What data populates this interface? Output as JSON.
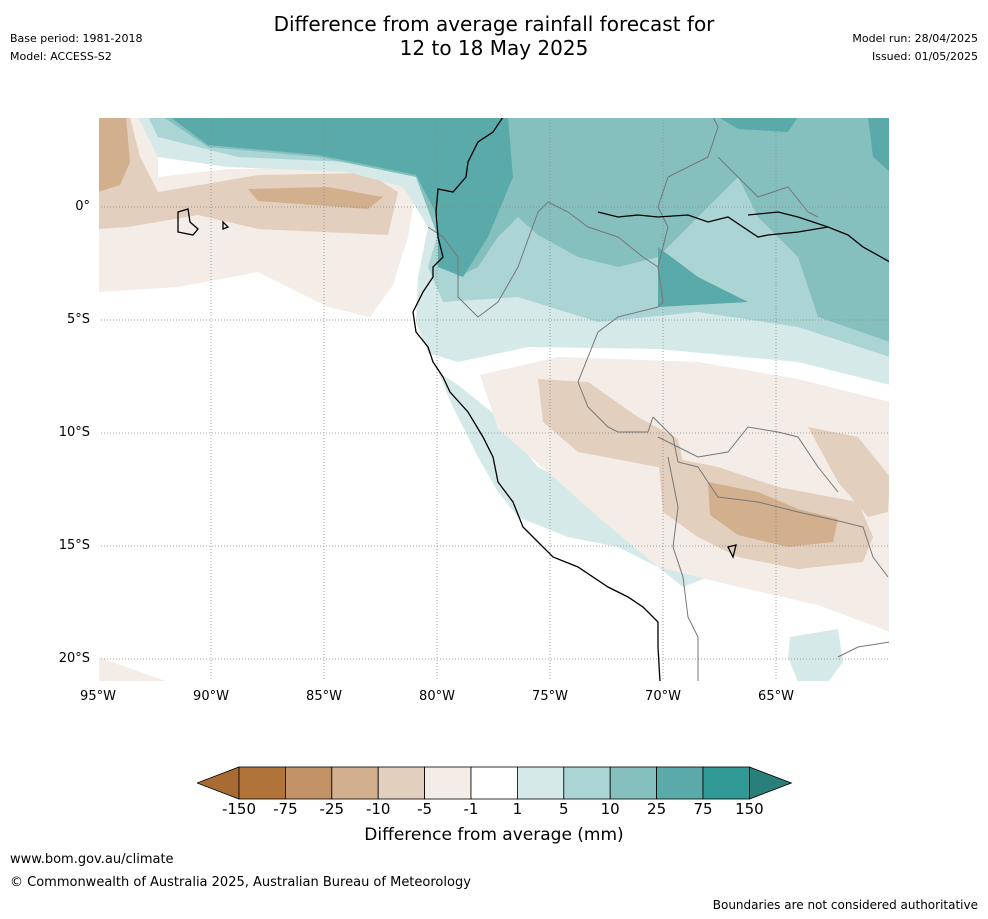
{
  "title": {
    "line1": "Difference from average rainfall forecast for",
    "line2": "12 to 18 May 2025"
  },
  "meta_left": {
    "base_period": "Base period: 1981-2018",
    "model": "Model: ACCESS-S2"
  },
  "meta_right": {
    "model_run": "Model run: 28/04/2025",
    "issued": "Issued: 01/05/2025"
  },
  "map": {
    "lat_labels": [
      "0°",
      "5°S",
      "10°S",
      "15°S",
      "20°S"
    ],
    "lon_labels": [
      "95°W",
      "90°W",
      "85°W",
      "80°W",
      "75°W",
      "70°W",
      "65°W"
    ]
  },
  "colorbar": {
    "ticks": [
      "-150",
      "-75",
      "-25",
      "-10",
      "-5",
      "-1",
      "1",
      "5",
      "10",
      "25",
      "75",
      "150"
    ],
    "colors": [
      "#a86b34",
      "#b0733a",
      "#c29366",
      "#d2b08e",
      "#e3cfbd",
      "#f4ece7",
      "#ffffff",
      "#d5e9e8",
      "#aad5d4",
      "#85c0bf",
      "#5aaaa9",
      "#329a96",
      "#2a7f7b"
    ],
    "title": "Difference from average (mm)"
  },
  "footer": {
    "url": "www.bom.gov.au/climate",
    "copyright": "© Commonwealth of Australia 2025, Australian Bureau of Meteorology",
    "disclaimer": "Boundaries are not considered authoritative"
  }
}
